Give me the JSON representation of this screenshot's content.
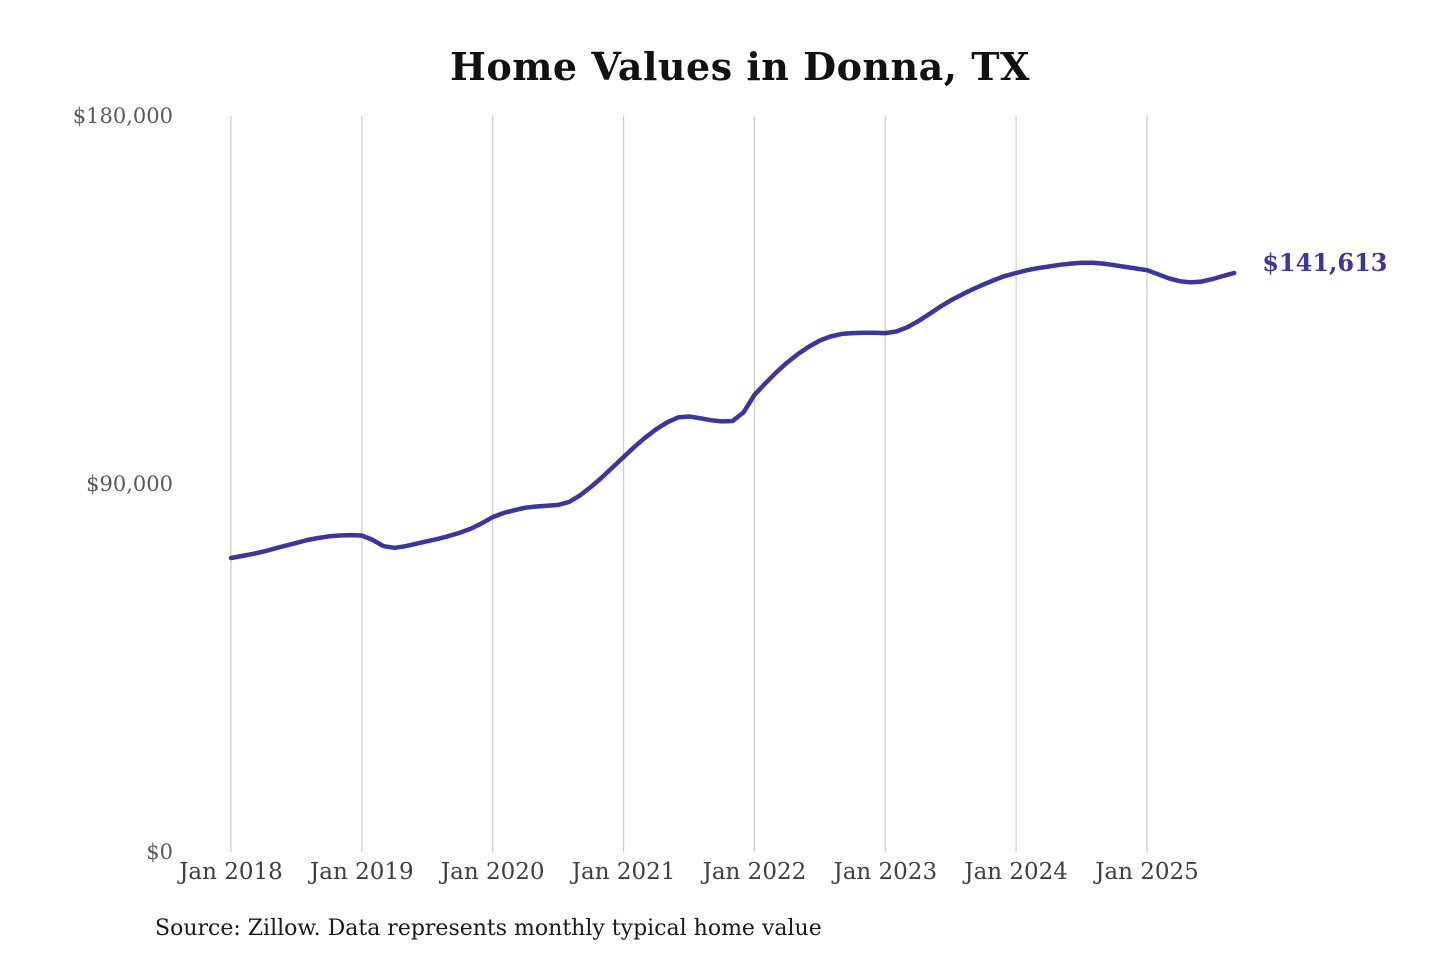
{
  "page": {
    "title": "Home Values in Donna, TX",
    "source_note": "Source: Zillow. Data represents monthly typical home value"
  },
  "chart_data": {
    "type": "line",
    "title": "Home Values in Donna, TX",
    "series_name": "Monthly typical home value",
    "start_month": "Jan 2018",
    "frequency": "monthly",
    "x_tick_labels": [
      "Jan 2018",
      "Jan 2019",
      "Jan 2020",
      "Jan 2021",
      "Jan 2022",
      "Jan 2023",
      "Jan 2024",
      "Jan 2025"
    ],
    "y_ticks": [
      0,
      90000,
      180000
    ],
    "y_tick_labels": [
      "$0",
      "$90,000",
      "$180,000"
    ],
    "ylim": [
      0,
      180000
    ],
    "grid": "vertical-only",
    "legend": "none",
    "line_color": "#3b35a0",
    "grid_color": "#cccccc",
    "end_label": "$141,613",
    "end_value": 141613,
    "values": [
      71900,
      72400,
      72900,
      73500,
      74200,
      74900,
      75600,
      76300,
      76800,
      77200,
      77400,
      77500,
      77400,
      76300,
      74800,
      74400,
      74800,
      75400,
      76000,
      76600,
      77300,
      78100,
      79100,
      80400,
      81900,
      82900,
      83600,
      84200,
      84500,
      84700,
      84900,
      85600,
      87200,
      89300,
      91600,
      94100,
      96600,
      99100,
      101400,
      103400,
      105100,
      106300,
      106500,
      106100,
      105600,
      105300,
      105400,
      107500,
      111800,
      114600,
      117300,
      119700,
      121800,
      123600,
      125100,
      126100,
      126700,
      126900,
      127000,
      127000,
      126900,
      127300,
      128300,
      129800,
      131500,
      133300,
      134900,
      136300,
      137600,
      138800,
      139900,
      140900,
      141600,
      142300,
      142800,
      143200,
      143600,
      143900,
      144100,
      144100,
      143900,
      143500,
      143100,
      142700,
      142300,
      141300,
      140300,
      139600,
      139300,
      139500,
      140100,
      140900,
      141613
    ]
  }
}
